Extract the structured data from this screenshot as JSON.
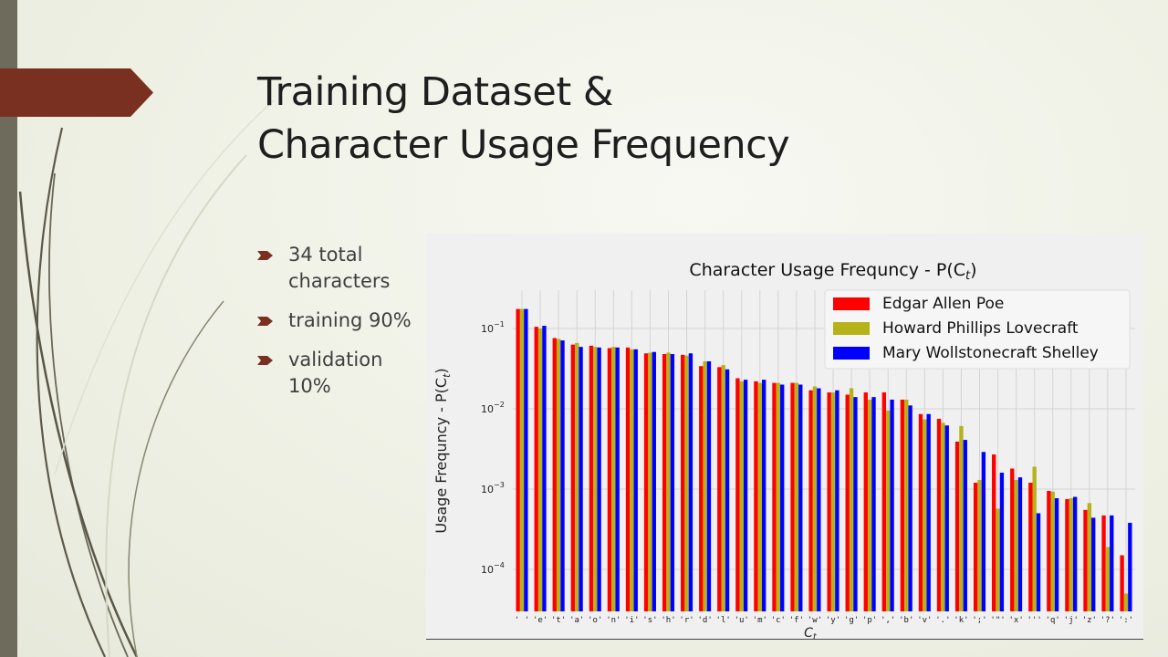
{
  "slide": {
    "title_line1": "Training Dataset &",
    "title_line2": "Character Usage Frequency",
    "bullets": [
      "34 total characters",
      "training 90%",
      "validation 10%"
    ],
    "colors": {
      "accent_arrow": "#7a3020",
      "bullet": "#7a3020",
      "left_bar": "#6f6b5c"
    }
  },
  "chart_data": {
    "type": "bar",
    "title": "Character Usage Frequncy - P(C",
    "title_subscript": "t",
    "title_suffix": ")",
    "xlabel": "C",
    "xlabel_subscript": "t",
    "ylabel": "Usage Frequncy - P(C",
    "ylabel_subscript": "t",
    "ylabel_suffix": ")",
    "yscale": "log",
    "ylim": [
      3e-05,
      0.3
    ],
    "yticks": [
      {
        "value": 0.1,
        "base": "10",
        "exp": "−1"
      },
      {
        "value": 0.01,
        "base": "10",
        "exp": "−2"
      },
      {
        "value": 0.001,
        "base": "10",
        "exp": "−3"
      },
      {
        "value": 0.0001,
        "base": "10",
        "exp": "−4"
      }
    ],
    "grid": true,
    "legend_position": "top-right",
    "categories": [
      "' '",
      "'e'",
      "'t'",
      "'a'",
      "'o'",
      "'n'",
      "'i'",
      "'s'",
      "'h'",
      "'r'",
      "'d'",
      "'l'",
      "'u'",
      "'m'",
      "'c'",
      "'f'",
      "'w'",
      "'y'",
      "'g'",
      "'p'",
      "','",
      "'b'",
      "'v'",
      "'.'",
      "'k'",
      "';'",
      "'\"'",
      "'x'",
      "'''",
      "'q'",
      "'j'",
      "'z'",
      "'?'",
      "':'"
    ],
    "series": [
      {
        "name": "Edgar Allen Poe",
        "color": "#ff0000",
        "values": [
          0.175,
          0.105,
          0.076,
          0.063,
          0.061,
          0.057,
          0.058,
          0.049,
          0.048,
          0.047,
          0.034,
          0.033,
          0.024,
          0.022,
          0.021,
          0.021,
          0.017,
          0.016,
          0.015,
          0.016,
          0.016,
          0.013,
          0.0086,
          0.0075,
          0.0039,
          0.0012,
          0.0027,
          0.0018,
          0.0012,
          0.00095,
          0.00075,
          0.00055,
          0.00047,
          0.00015
        ]
      },
      {
        "name": "Howard Phillips Lovecraft",
        "color": "#b5b21a",
        "values": [
          0.175,
          0.1,
          0.074,
          0.066,
          0.059,
          0.059,
          0.055,
          0.05,
          0.05,
          0.046,
          0.039,
          0.035,
          0.022,
          0.021,
          0.021,
          0.021,
          0.019,
          0.016,
          0.018,
          0.013,
          0.0095,
          0.013,
          0.0074,
          0.0067,
          0.0061,
          0.0013,
          0.00057,
          0.0013,
          0.0019,
          0.00093,
          0.00077,
          0.00067,
          0.00019,
          5e-05
        ]
      },
      {
        "name": "Mary Wollstonecraft Shelley",
        "color": "#0000ff",
        "values": [
          0.175,
          0.108,
          0.071,
          0.059,
          0.058,
          0.058,
          0.055,
          0.051,
          0.048,
          0.049,
          0.039,
          0.031,
          0.023,
          0.023,
          0.02,
          0.02,
          0.018,
          0.017,
          0.014,
          0.014,
          0.013,
          0.011,
          0.0086,
          0.0062,
          0.0041,
          0.0029,
          0.0016,
          0.0014,
          0.0005,
          0.00077,
          0.0008,
          0.00044,
          0.00047,
          0.00038
        ]
      }
    ]
  }
}
